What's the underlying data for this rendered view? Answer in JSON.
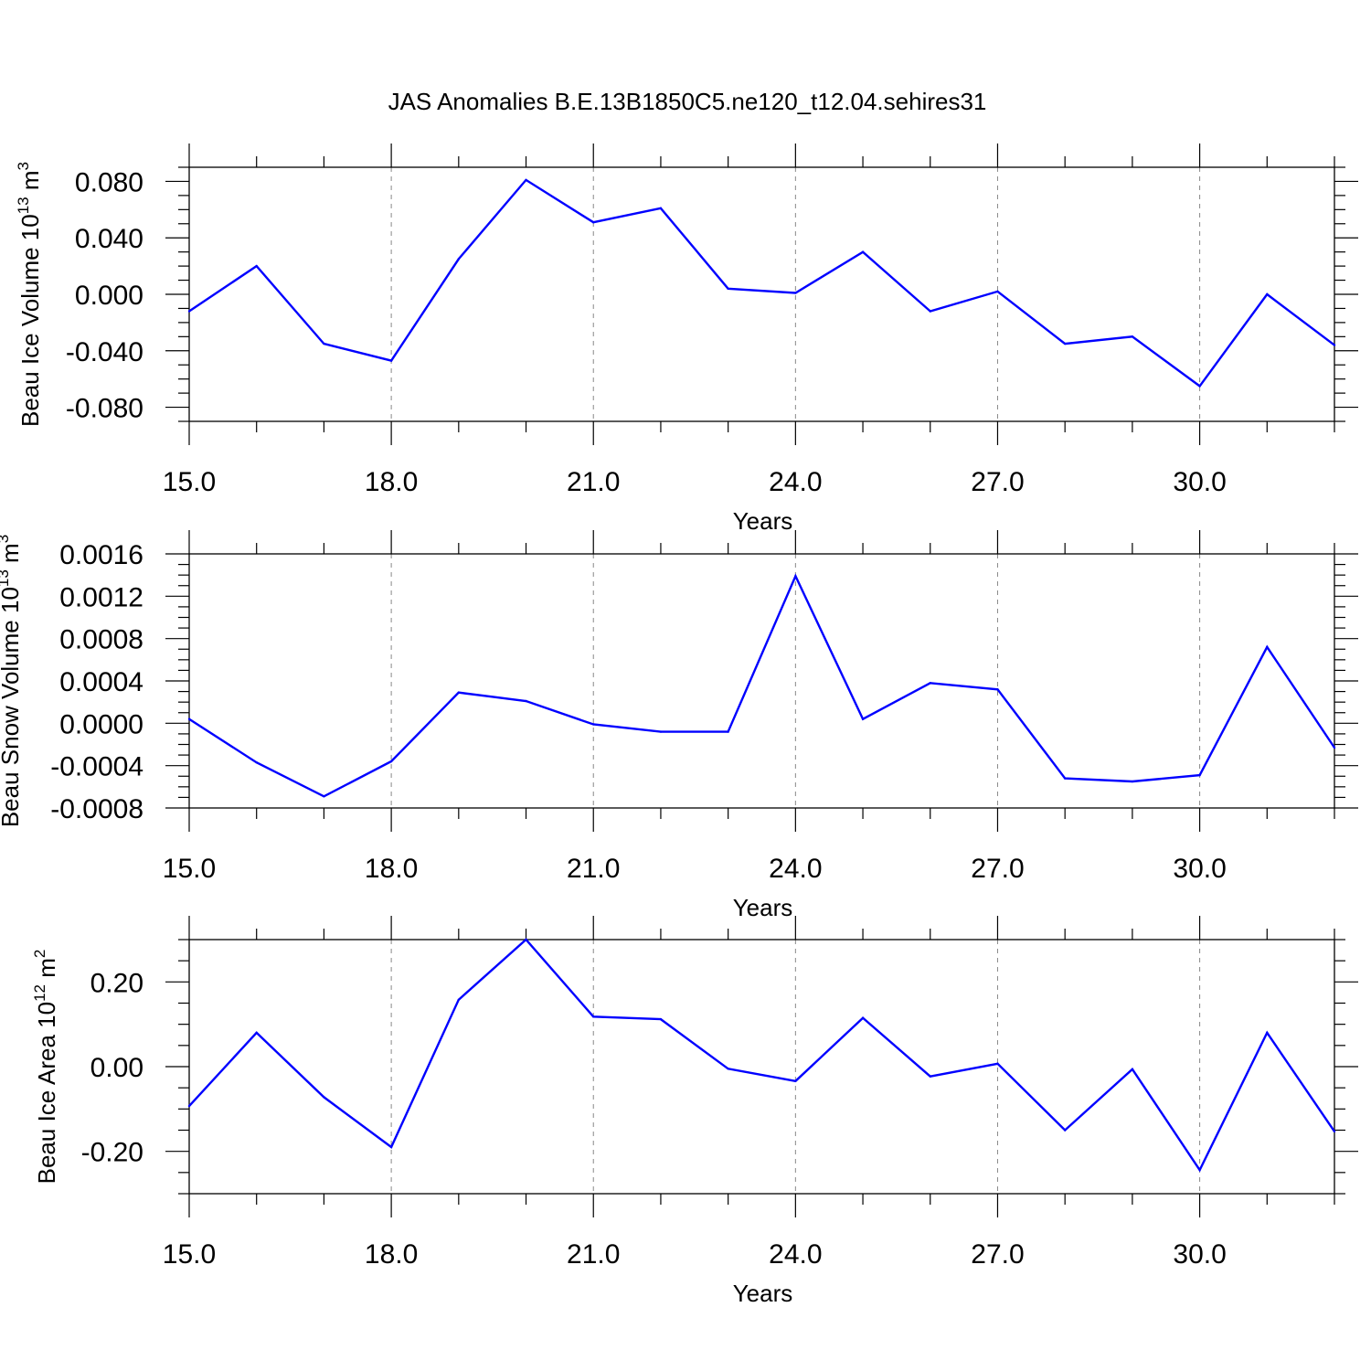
{
  "title": "JAS Anomalies B.E.13B1850C5.ne120_t12.04.sehires31",
  "colors": {
    "line": "#0000ff",
    "axis": "#000000",
    "grid": "#888888"
  },
  "chart_data": [
    {
      "type": "line",
      "ylabel": "Beau Ice Volume 10",
      "ylabel_sup": "13",
      "ylabel_unit": " m",
      "ylabel_unit_sup": "3",
      "xlabel": "Years",
      "xlim": [
        15,
        32
      ],
      "ylim": [
        -0.09,
        0.09
      ],
      "xticks": [
        15,
        18,
        21,
        24,
        27,
        30
      ],
      "xtick_labels": [
        "15.0",
        "18.0",
        "21.0",
        "24.0",
        "27.0",
        "30.0"
      ],
      "yticks": [
        -0.08,
        -0.04,
        0.0,
        0.04,
        0.08
      ],
      "ytick_labels": [
        "-0.080",
        "-0.040",
        "0.000",
        "0.040",
        "0.080"
      ],
      "y_minor_step": 0.01,
      "grid": "vertical dashed at major x ticks",
      "x": [
        15,
        16,
        17,
        18,
        19,
        20,
        21,
        22,
        23,
        24,
        25,
        26,
        27,
        28,
        29,
        30,
        31,
        32
      ],
      "values": [
        -0.012,
        0.02,
        -0.035,
        -0.047,
        0.025,
        0.081,
        0.051,
        0.061,
        0.004,
        0.001,
        0.03,
        -0.012,
        0.002,
        -0.035,
        -0.03,
        -0.065,
        0.0,
        -0.036
      ]
    },
    {
      "type": "line",
      "ylabel": "Beau Snow Volume 10",
      "ylabel_sup": "13",
      "ylabel_unit": " m",
      "ylabel_unit_sup": "3",
      "xlabel": "Years",
      "xlim": [
        15,
        32
      ],
      "ylim": [
        -0.0008,
        0.0016
      ],
      "xticks": [
        15,
        18,
        21,
        24,
        27,
        30
      ],
      "xtick_labels": [
        "15.0",
        "18.0",
        "21.0",
        "24.0",
        "27.0",
        "30.0"
      ],
      "yticks": [
        -0.0008,
        -0.0004,
        0.0,
        0.0004,
        0.0008,
        0.0012,
        0.0016
      ],
      "ytick_labels": [
        "-0.0008",
        "-0.0004",
        "0.0000",
        "0.0004",
        "0.0008",
        "0.0012",
        "0.0016"
      ],
      "y_minor_step": 0.0001,
      "grid": "vertical dashed at major x ticks",
      "x": [
        15,
        16,
        17,
        18,
        19,
        20,
        21,
        22,
        23,
        24,
        25,
        26,
        27,
        28,
        29,
        30,
        31,
        32
      ],
      "values": [
        4e-05,
        -0.00037,
        -0.00069,
        -0.00036,
        0.00029,
        0.00021,
        -1e-05,
        -8e-05,
        -8e-05,
        0.00139,
        4e-05,
        0.00038,
        0.00032,
        -0.00052,
        -0.00055,
        -0.00049,
        0.00072,
        -0.00023
      ]
    },
    {
      "type": "line",
      "ylabel": "Beau Ice Area 10",
      "ylabel_sup": "12",
      "ylabel_unit": " m",
      "ylabel_unit_sup": "2",
      "xlabel": "Years",
      "xlim": [
        15,
        32
      ],
      "ylim": [
        -0.3,
        0.3
      ],
      "xticks": [
        15,
        18,
        21,
        24,
        27,
        30
      ],
      "xtick_labels": [
        "15.0",
        "18.0",
        "21.0",
        "24.0",
        "27.0",
        "30.0"
      ],
      "yticks": [
        -0.2,
        0.0,
        0.2
      ],
      "ytick_labels": [
        "-0.20",
        "0.00",
        "0.20"
      ],
      "y_minor_step": 0.05,
      "grid": "vertical dashed at major x ticks",
      "x": [
        15,
        16,
        17,
        18,
        19,
        20,
        21,
        22,
        23,
        24,
        25,
        26,
        27,
        28,
        29,
        30,
        31,
        32
      ],
      "values": [
        -0.093,
        0.08,
        -0.072,
        -0.19,
        0.158,
        0.3,
        0.118,
        0.112,
        -0.005,
        -0.034,
        0.115,
        -0.023,
        0.007,
        -0.15,
        -0.006,
        -0.244,
        0.08,
        -0.153
      ]
    }
  ]
}
